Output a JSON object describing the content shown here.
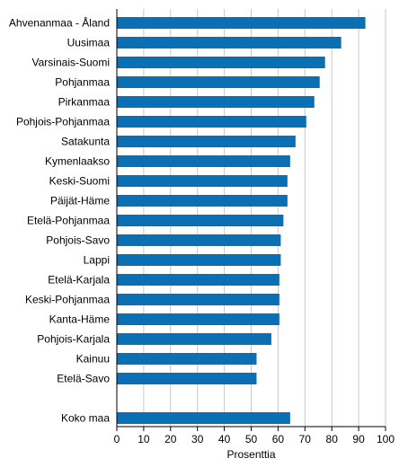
{
  "chart_data": {
    "type": "bar",
    "orientation": "horizontal",
    "title": "",
    "xlabel": "Prosenttia",
    "ylabel": "",
    "xlim": [
      0,
      100
    ],
    "xticks": [
      0,
      10,
      20,
      30,
      40,
      50,
      60,
      70,
      80,
      90,
      100
    ],
    "grid": "vertical",
    "legend": "none",
    "bar_color": "#0a6fb3",
    "grid_color": "#c9c9c9",
    "categories": [
      "Ahvenanmaa - Åland",
      "Uusimaa",
      "Varsinais-Suomi",
      "Pohjanmaa",
      "Pirkanmaa",
      "Pohjois-Pohjanmaa",
      "Satakunta",
      "Kymenlaakso",
      "Keski-Suomi",
      "Päijät-Häme",
      "Etelä-Pohjanmaa",
      "Pohjois-Savo",
      "Lappi",
      "Etelä-Karjala",
      "Keski-Pohjanmaa",
      "Kanta-Häme",
      "Pohjois-Karjala",
      "Kainuu",
      "Etelä-Savo",
      "",
      "Koko maa"
    ],
    "values": [
      92.5,
      83.5,
      77.5,
      75.5,
      73.5,
      70.5,
      66.5,
      64.5,
      63.5,
      63.5,
      62.0,
      61.0,
      61.0,
      60.5,
      60.5,
      60.5,
      57.5,
      52.0,
      52.0,
      null,
      64.5
    ]
  }
}
